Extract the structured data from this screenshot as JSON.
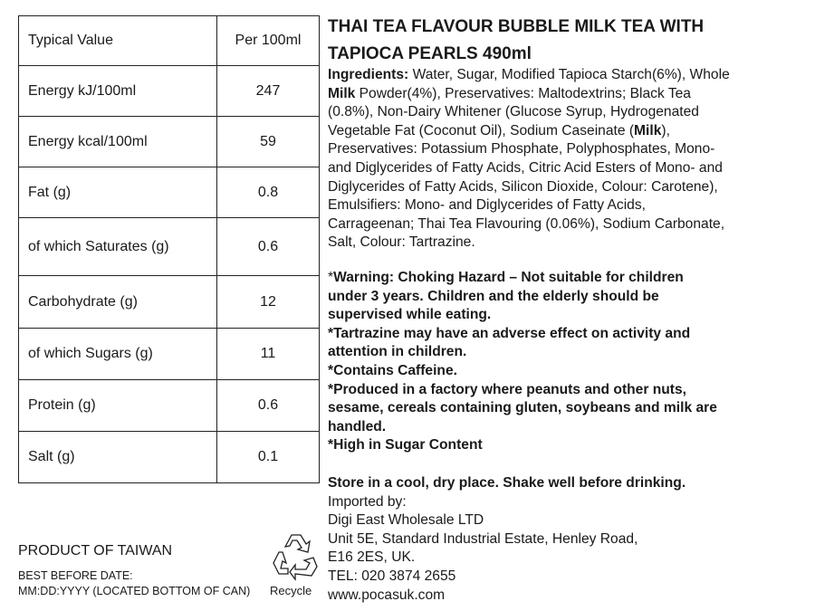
{
  "nutrition": {
    "header": [
      "Typical Value",
      "Per 100ml"
    ],
    "rows": [
      [
        "Energy kJ/100ml",
        "247"
      ],
      [
        "Energy kcal/100ml",
        "59"
      ],
      [
        "Fat (g)",
        "0.8"
      ],
      [
        "of which Saturates (g)",
        "0.6"
      ],
      [
        "Carbohydrate (g)",
        "12"
      ],
      [
        "of which Sugars (g)",
        "11"
      ],
      [
        "Protein (g)",
        "0.6"
      ],
      [
        "Salt (g)",
        "0.1"
      ]
    ]
  },
  "title_lines": [
    "THAI TEA FLAVOUR BUBBLE MILK TEA WITH",
    "TAPIOCA PEARLS 490ml"
  ],
  "ingredients_lines": [
    [
      [
        "Ingredients:",
        true
      ],
      [
        " Water, Sugar, Modified Tapioca Starch(6%), Whole",
        false
      ]
    ],
    [
      [
        "Milk",
        true
      ],
      [
        " Powder(4%), Preservatives: Maltodextrins; Black Tea",
        false
      ]
    ],
    [
      [
        "(0.8%), Non-Dairy Whitener (Glucose Syrup, Hydrogenated",
        false
      ]
    ],
    [
      [
        "Vegetable Fat (Coconut Oil), Sodium Caseinate (",
        false
      ],
      [
        "Milk",
        true
      ],
      [
        "),",
        false
      ]
    ],
    [
      [
        "Preservatives: Potassium Phosphate, Polyphosphates, Mono-",
        false
      ]
    ],
    [
      [
        "and Diglycerides of Fatty Acids, Citric Acid Esters of Mono- and",
        false
      ]
    ],
    [
      [
        "Diglycerides of Fatty Acids, Silicon Dioxide, Colour: Carotene),",
        false
      ]
    ],
    [
      [
        "Emulsifiers: Mono- and Diglycerides of Fatty Acids,",
        false
      ]
    ],
    [
      [
        "Carrageenan; Thai Tea Flavouring (0.06%), Sodium Carbonate,",
        false
      ]
    ],
    [
      [
        "Salt, Colour: Tartrazine.",
        false
      ]
    ]
  ],
  "warning_lines": [
    [
      [
        "*",
        false
      ],
      [
        "Warning: Choking Hazard – Not suitable for children",
        true
      ]
    ],
    [
      [
        "under 3 years. Children and the elderly should be",
        true
      ]
    ],
    [
      [
        "supervised while eating.",
        true
      ]
    ],
    [
      [
        "*Tartrazine may have an adverse effect on activity and",
        true
      ]
    ],
    [
      [
        "attention in children.",
        true
      ]
    ],
    [
      [
        "*Contains Caffeine.",
        true
      ]
    ],
    [
      [
        "*Produced in a factory where peanuts and other nuts,",
        true
      ]
    ],
    [
      [
        "sesame, cereals containing gluten, soybeans and milk are",
        true
      ]
    ],
    [
      [
        "handled.",
        true
      ]
    ],
    [
      [
        "*High in Sugar Content",
        true
      ]
    ]
  ],
  "storage_lines": [
    [
      [
        "Store in a cool, dry place. Shake well before drinking.",
        true
      ]
    ],
    [
      [
        "Imported by:",
        false
      ]
    ],
    [
      [
        "Digi East Wholesale LTD",
        false
      ]
    ],
    [
      [
        "Unit 5E, Standard Industrial Estate, Henley Road,",
        false
      ]
    ],
    [
      [
        "E16 2ES, UK.",
        false
      ]
    ],
    [
      [
        "TEL: 020 3874 2655",
        false
      ]
    ],
    [
      [
        "www.pocasuk.com",
        false
      ]
    ]
  ],
  "footer": {
    "origin": "PRODUCT OF TAIWAN",
    "best_before_label": "BEST BEFORE DATE:",
    "best_before_value": "MM:DD:YYYY (LOCATED BOTTOM OF CAN)",
    "recycle_label": "Recycle",
    "recycle_icon": "recycle-icon"
  }
}
